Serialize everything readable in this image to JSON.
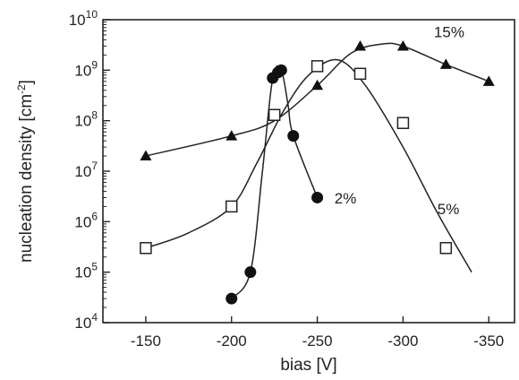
{
  "chart_data": {
    "type": "scatter",
    "xlabel": "bias [V]",
    "ylabel": "nucleation density  [cm",
    "ylabel_sup": "-2",
    "ylabel_close": "]",
    "yscale": "log",
    "xlim": [
      -125,
      -365
    ],
    "ylim": [
      10000,
      10000000000
    ],
    "x_ticks": [
      {
        "value": -150,
        "label": "-150"
      },
      {
        "value": -200,
        "label": "-200"
      },
      {
        "value": -250,
        "label": "-250"
      },
      {
        "value": -300,
        "label": "-300"
      },
      {
        "value": -350,
        "label": "-350"
      }
    ],
    "y_ticks": [
      {
        "value": 10000,
        "base": "10",
        "exp": "4"
      },
      {
        "value": 100000,
        "base": "10",
        "exp": "5"
      },
      {
        "value": 1000000,
        "base": "10",
        "exp": "6"
      },
      {
        "value": 10000000,
        "base": "10",
        "exp": "7"
      },
      {
        "value": 100000000,
        "base": "10",
        "exp": "8"
      },
      {
        "value": 1000000000,
        "base": "10",
        "exp": "9"
      },
      {
        "value": 10000000000,
        "base": "10",
        "exp": "10"
      }
    ],
    "series": [
      {
        "name": "2%",
        "marker": "circle",
        "points": [
          {
            "x": -200,
            "y": 30000
          },
          {
            "x": -211,
            "y": 100000
          },
          {
            "x": -224,
            "y": 700000000
          },
          {
            "x": -227,
            "y": 900000000
          },
          {
            "x": -229,
            "y": 1000000000
          },
          {
            "x": -236,
            "y": 50000000
          },
          {
            "x": -250,
            "y": 3000000
          }
        ],
        "curve": [
          {
            "x": -200,
            "y": 30000
          },
          {
            "x": -211,
            "y": 100000
          },
          {
            "x": -218,
            "y": 10000000
          },
          {
            "x": -224,
            "y": 700000000
          },
          {
            "x": -229,
            "y": 1000000000
          },
          {
            "x": -233,
            "y": 200000000
          },
          {
            "x": -236,
            "y": 50000000
          },
          {
            "x": -250,
            "y": 3000000
          }
        ]
      },
      {
        "name": "5%",
        "marker": "square",
        "points": [
          {
            "x": -150,
            "y": 300000
          },
          {
            "x": -200,
            "y": 2000000
          },
          {
            "x": -225,
            "y": 130000000
          },
          {
            "x": -250,
            "y": 1200000000
          },
          {
            "x": -275,
            "y": 850000000
          },
          {
            "x": -300,
            "y": 90000000
          },
          {
            "x": -325,
            "y": 300000
          }
        ],
        "curve": [
          {
            "x": -150,
            "y": 300000
          },
          {
            "x": -175,
            "y": 600000
          },
          {
            "x": -200,
            "y": 2000000
          },
          {
            "x": -215,
            "y": 15000000
          },
          {
            "x": -230,
            "y": 150000000
          },
          {
            "x": -245,
            "y": 800000000
          },
          {
            "x": -262,
            "y": 1600000000
          },
          {
            "x": -278,
            "y": 500000000
          },
          {
            "x": -300,
            "y": 30000000
          },
          {
            "x": -320,
            "y": 1500000
          },
          {
            "x": -340,
            "y": 100000
          }
        ]
      },
      {
        "name": "15%",
        "marker": "triangle",
        "points": [
          {
            "x": -150,
            "y": 20000000
          },
          {
            "x": -200,
            "y": 50000000
          },
          {
            "x": -250,
            "y": 500000000
          },
          {
            "x": -275,
            "y": 3000000000
          },
          {
            "x": -300,
            "y": 3000000000
          },
          {
            "x": -325,
            "y": 1300000000
          },
          {
            "x": -350,
            "y": 600000000
          }
        ],
        "curve": [
          {
            "x": -150,
            "y": 20000000
          },
          {
            "x": -200,
            "y": 50000000
          },
          {
            "x": -225,
            "y": 100000000
          },
          {
            "x": -250,
            "y": 500000000
          },
          {
            "x": -270,
            "y": 2200000000
          },
          {
            "x": -288,
            "y": 3300000000
          },
          {
            "x": -300,
            "y": 3000000000
          },
          {
            "x": -325,
            "y": 1300000000
          },
          {
            "x": -350,
            "y": 600000000
          }
        ]
      }
    ],
    "grid": false,
    "legend": "none"
  }
}
